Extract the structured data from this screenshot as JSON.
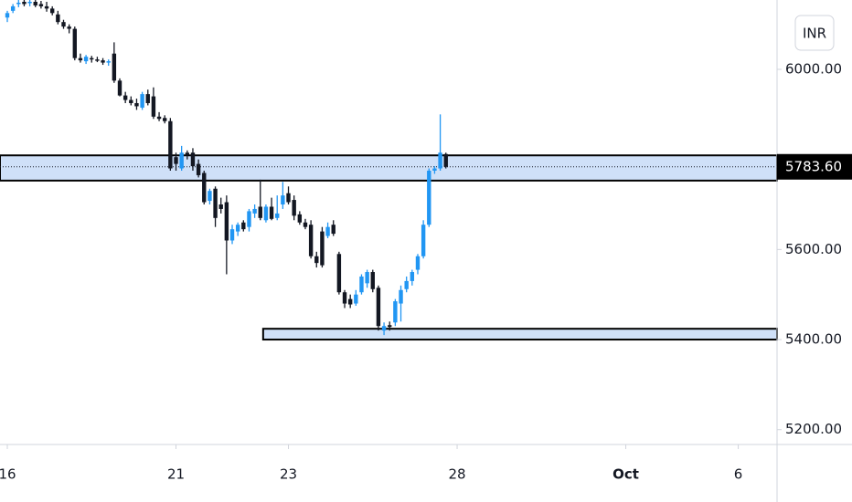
{
  "chart_data": {
    "type": "candlestick",
    "currency": "INR",
    "open": [
      6115,
      6130,
      6145,
      6150,
      6148,
      6150,
      6145,
      6140,
      6135,
      6122,
      6105,
      6095,
      6090,
      6025,
      6018,
      6025,
      6022,
      6020,
      6015,
      6035,
      5975,
      5942,
      5932,
      5925,
      5915,
      5945,
      5940,
      5895,
      5892,
      5885,
      5805,
      5780,
      5815,
      5815,
      5790,
      5770,
      5708,
      5735,
      5700,
      5705,
      5620,
      5640,
      5660,
      5650,
      5680,
      5695,
      5665,
      5695,
      5670,
      5700,
      5725,
      5710,
      5678,
      5660,
      5655,
      5585,
      5640,
      5630,
      5655,
      5590,
      5505,
      5490,
      5480,
      5505,
      5525,
      5550,
      5515,
      5420,
      5432,
      5438,
      5480,
      5512,
      5530,
      5555,
      5585,
      5655,
      5775,
      5780,
      5812
    ],
    "high": [
      6130,
      6145,
      6154,
      6154,
      6154,
      6154,
      6152,
      6150,
      6140,
      6130,
      6110,
      6100,
      6095,
      6035,
      6032,
      6030,
      6028,
      6025,
      6022,
      6060,
      5980,
      5950,
      5940,
      5935,
      5950,
      5955,
      5960,
      5905,
      5898,
      5892,
      5815,
      5830,
      5820,
      5825,
      5800,
      5775,
      5735,
      5740,
      5715,
      5720,
      5655,
      5660,
      5665,
      5690,
      5700,
      5755,
      5700,
      5715,
      5720,
      5750,
      5740,
      5720,
      5685,
      5668,
      5665,
      5595,
      5650,
      5660,
      5665,
      5595,
      5510,
      5500,
      5510,
      5545,
      5555,
      5555,
      5520,
      5438,
      5440,
      5490,
      5520,
      5540,
      5555,
      5590,
      5665,
      5780,
      5785,
      5900,
      5815
    ],
    "low": [
      6105,
      6125,
      6138,
      6140,
      6140,
      6138,
      6135,
      6128,
      6120,
      6100,
      6090,
      6080,
      6020,
      6015,
      6012,
      6015,
      6016,
      6010,
      6008,
      5970,
      5940,
      5925,
      5920,
      5910,
      5910,
      5920,
      5890,
      5885,
      5880,
      5775,
      5775,
      5775,
      5800,
      5775,
      5760,
      5700,
      5700,
      5650,
      5680,
      5545,
      5612,
      5630,
      5640,
      5640,
      5670,
      5665,
      5660,
      5665,
      5665,
      5690,
      5700,
      5665,
      5655,
      5645,
      5580,
      5560,
      5560,
      5625,
      5630,
      5500,
      5470,
      5470,
      5475,
      5500,
      5515,
      5505,
      5420,
      5410,
      5420,
      5430,
      5440,
      5505,
      5520,
      5545,
      5580,
      5650,
      5768,
      5775,
      5780
    ],
    "close": [
      6125,
      6140,
      6148,
      6145,
      6150,
      6142,
      6140,
      6135,
      6125,
      6105,
      6095,
      6090,
      6025,
      6020,
      6028,
      6022,
      6020,
      6015,
      6018,
      5975,
      5942,
      5932,
      5925,
      5918,
      5945,
      5925,
      5895,
      5890,
      5885,
      5780,
      5790,
      5815,
      5810,
      5785,
      5765,
      5705,
      5730,
      5670,
      5690,
      5620,
      5645,
      5655,
      5645,
      5685,
      5690,
      5670,
      5695,
      5668,
      5680,
      5720,
      5705,
      5675,
      5660,
      5650,
      5585,
      5570,
      5565,
      5650,
      5635,
      5505,
      5480,
      5478,
      5500,
      5540,
      5550,
      5512,
      5430,
      5430,
      5428,
      5485,
      5510,
      5530,
      5550,
      5585,
      5655,
      5775,
      5780,
      5815,
      5783.6
    ],
    "up_color": "#2196f3",
    "down_color": "#131722",
    "zones": [
      {
        "low": 5753,
        "high": 5809,
        "start": -1.3
      },
      {
        "low": 5400,
        "high": 5424,
        "start": 45.5
      }
    ],
    "zone_color": "#cfe0f8",
    "price_line": {
      "value": 5783.6,
      "label": "5783.60"
    },
    "xlim": [
      -1.3,
      136.9
    ],
    "xticks": [
      {
        "value": 0,
        "label": "16"
      },
      {
        "value": 30,
        "label": "21"
      },
      {
        "value": 50,
        "label": "23"
      },
      {
        "value": 80,
        "label": "28"
      },
      {
        "value": 110,
        "label": "Oct"
      },
      {
        "value": 130,
        "label": "6"
      }
    ],
    "ylim": [
      5167,
      6154
    ],
    "yticks": [
      {
        "value": 5200,
        "label": "5200.00"
      },
      {
        "value": 5400,
        "label": "5400.00"
      },
      {
        "value": 5600,
        "label": "5600.00"
      },
      {
        "value": 6000,
        "label": "6000.00"
      }
    ]
  }
}
